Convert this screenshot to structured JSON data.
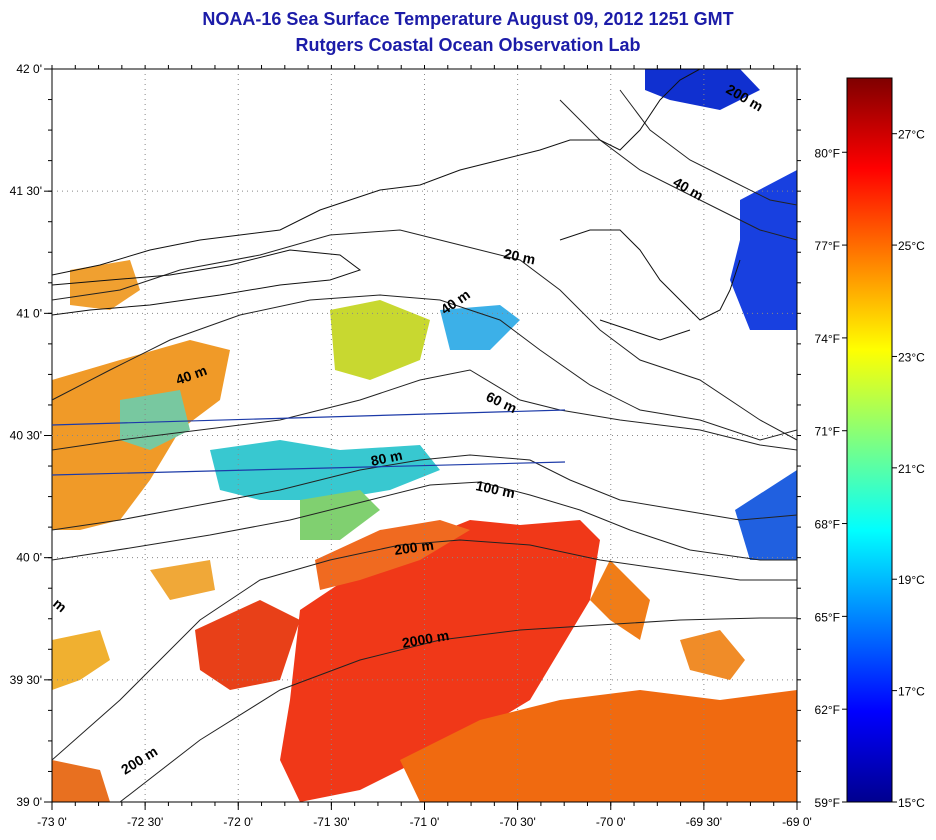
{
  "title": "NOAA-16 Sea Surface Temperature August 09, 2012 1251 GMT",
  "subtitle": "Rutgers Coastal Ocean Observation Lab",
  "map": {
    "lon_ticks": [
      "-73 0'",
      "-72 30'",
      "-72 0'",
      "-71 30'",
      "-71 0'",
      "-70 30'",
      "-70 0'",
      "-69 30'",
      "-69 0'"
    ],
    "lat_ticks": [
      "42 0'",
      "41 30'",
      "41 0'",
      "40 30'",
      "40 0'",
      "39 30'",
      "39 0'"
    ],
    "lon_range": [
      -73,
      -69
    ],
    "lat_range": [
      39,
      42
    ],
    "contour_labels": [
      "20 m",
      "40 m",
      "40 m",
      "40 m",
      "60 m",
      "80 m",
      "100 m",
      "200 m",
      "200 m",
      "2000 m",
      "200 m",
      "m"
    ],
    "grid": true
  },
  "colorbar": {
    "celsius_labels": [
      "27°C",
      "25°C",
      "23°C",
      "21°C",
      "19°C",
      "17°C",
      "15°C"
    ],
    "fahrenheit_labels": [
      "80°F",
      "77°F",
      "74°F",
      "71°F",
      "68°F",
      "65°F",
      "62°F",
      "59°F"
    ],
    "range_c": [
      15,
      28
    ]
  },
  "colors": {
    "title": "#1c1ca8"
  }
}
